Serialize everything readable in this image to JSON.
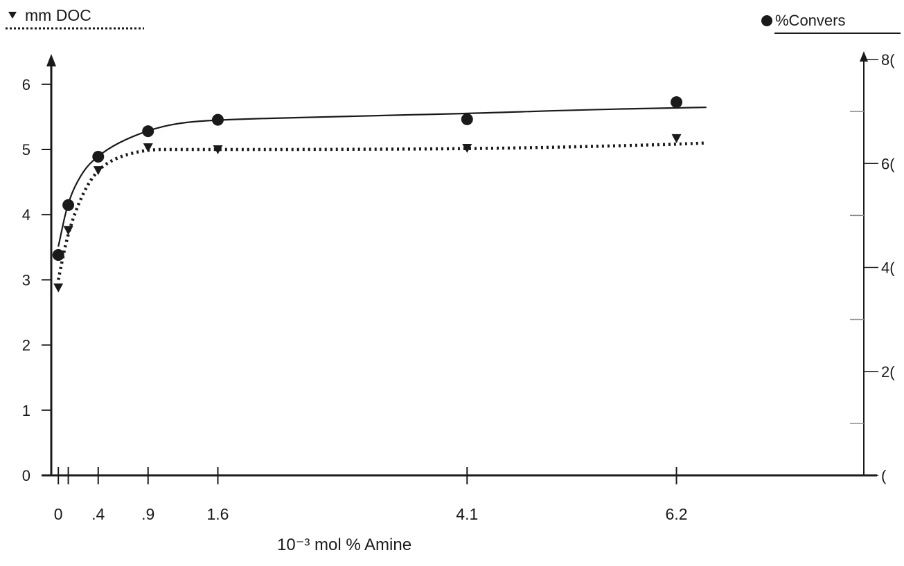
{
  "chart_data": {
    "type": "line",
    "title": "",
    "xlabel": "10⁻³ mol % Amine",
    "x_tick_labels": [
      "0",
      ".4",
      ".9",
      "1.6",
      "4.1",
      "6.2"
    ],
    "xlim": [
      -0.05,
      8.1
    ],
    "left_axis": {
      "label": "mm DOC",
      "ylim": [
        0,
        6.5
      ],
      "tick_labels": [
        "0",
        "1",
        "2",
        "3",
        "4",
        "5",
        "6"
      ]
    },
    "right_axis": {
      "label": "%Convers",
      "ylim": [
        0,
        80
      ],
      "tick_labels": [
        "(",
        "2(",
        "4(",
        "6(",
        "8("
      ]
    },
    "series": [
      {
        "name": "mm DOC",
        "axis": "left",
        "marker": "triangle-down",
        "line": "dotted",
        "x": [
          0,
          0.1,
          0.4,
          0.9,
          1.6,
          4.1,
          6.2
        ],
        "y": [
          2.87,
          3.75,
          4.67,
          5.02,
          4.99,
          5.01,
          5.16
        ],
        "fit_x": [
          0,
          0.1,
          0.25,
          0.4,
          0.6,
          0.9,
          1.2,
          1.6,
          2.5,
          4.1,
          5.2,
          6.2,
          6.5
        ],
        "fit_y": [
          3.0,
          3.75,
          4.35,
          4.7,
          4.89,
          5.0,
          5.0,
          5.0,
          5.0,
          5.01,
          5.04,
          5.08,
          5.1
        ]
      },
      {
        "name": "%Convers",
        "axis": "right",
        "marker": "circle",
        "line": "solid",
        "x": [
          0,
          0.1,
          0.4,
          0.9,
          1.6,
          4.1,
          6.2
        ],
        "y": [
          42.4,
          52.0,
          61.3,
          66.2,
          68.4,
          68.5,
          71.8
        ],
        "fit_x": [
          0,
          0.1,
          0.25,
          0.4,
          0.6,
          0.9,
          1.2,
          1.6,
          2.5,
          4.1,
          5.2,
          6.2,
          6.5
        ],
        "fit_y": [
          44.0,
          53.0,
          58.7,
          61.5,
          64.0,
          66.4,
          67.8,
          68.4,
          68.9,
          69.6,
          70.3,
          70.7,
          70.8
        ]
      }
    ]
  }
}
